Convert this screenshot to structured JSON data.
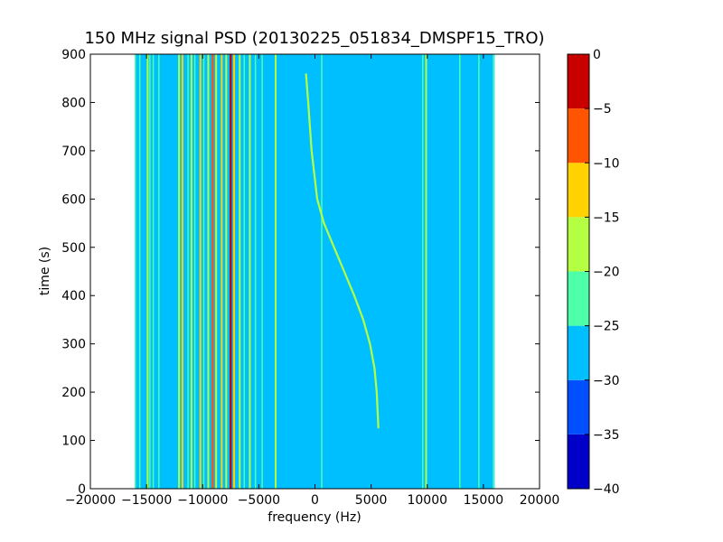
{
  "chart_data": {
    "type": "heatmap",
    "title": "150 MHz signal PSD (20130225_051834_DMSPF15_TRO)",
    "xlabel": "frequency (Hz)",
    "ylabel": "time (s)",
    "xlim": [
      -20000,
      20000
    ],
    "ylim": [
      0,
      900
    ],
    "x_ticks": [
      -20000,
      -15000,
      -10000,
      -5000,
      0,
      5000,
      10000,
      15000,
      20000
    ],
    "y_ticks": [
      0,
      100,
      200,
      300,
      400,
      500,
      600,
      700,
      800,
      900
    ],
    "data_extent_x": [
      -16000,
      16000
    ],
    "background_level_db": -27.5,
    "colorbar": {
      "ticks": [
        0,
        -5,
        -10,
        -15,
        -20,
        -25,
        -30,
        -35,
        -40
      ],
      "range": [
        -40,
        0
      ],
      "levels": [
        {
          "from": -40,
          "to": -35,
          "color": "#0000c8"
        },
        {
          "from": -35,
          "to": -30,
          "color": "#0050ff"
        },
        {
          "from": -30,
          "to": -25,
          "color": "#00bfff"
        },
        {
          "from": -25,
          "to": -20,
          "color": "#4dffa8"
        },
        {
          "from": -20,
          "to": -15,
          "color": "#b5ff43"
        },
        {
          "from": -15,
          "to": -10,
          "color": "#ffd200"
        },
        {
          "from": -10,
          "to": -5,
          "color": "#ff5500"
        },
        {
          "from": -5,
          "to": 0,
          "color": "#c80000"
        }
      ]
    },
    "vertical_lines": [
      {
        "f": -16000,
        "level": -22.5
      },
      {
        "f": -15600,
        "level": -22.5
      },
      {
        "f": -14900,
        "level": -17.5
      },
      {
        "f": -14700,
        "level": -22.5
      },
      {
        "f": -14400,
        "level": -22.5
      },
      {
        "f": -13900,
        "level": -22.5
      },
      {
        "f": -12100,
        "level": -17.5
      },
      {
        "f": -11800,
        "level": -12.5
      },
      {
        "f": -11300,
        "level": -22.5
      },
      {
        "f": -11000,
        "level": -17.5
      },
      {
        "f": -10700,
        "level": -22.5
      },
      {
        "f": -10200,
        "level": -12.5
      },
      {
        "f": -9900,
        "level": -22.5
      },
      {
        "f": -9500,
        "level": -17.5
      },
      {
        "f": -9100,
        "level": -7.5
      },
      {
        "f": -8800,
        "level": -17.5
      },
      {
        "f": -8300,
        "level": -12.5
      },
      {
        "f": -7900,
        "level": -17.5
      },
      {
        "f": -7500,
        "level": -2.5
      },
      {
        "f": -7200,
        "level": -12.5
      },
      {
        "f": -6700,
        "level": -17.5
      },
      {
        "f": -6300,
        "level": -22.5
      },
      {
        "f": -5800,
        "level": -17.5
      },
      {
        "f": -5300,
        "level": -22.5
      },
      {
        "f": -4700,
        "level": -22.5
      },
      {
        "f": -3500,
        "level": -17.5
      },
      {
        "f": 600,
        "level": -22.5
      },
      {
        "f": 9600,
        "level": -22.5
      },
      {
        "f": 9900,
        "level": -17.5
      },
      {
        "f": 12900,
        "level": -22.5
      },
      {
        "f": 14600,
        "level": -22.5
      },
      {
        "f": 15900,
        "level": -22.5
      }
    ],
    "signal_trace": {
      "level": -17.5,
      "points": [
        {
          "time": 860,
          "freq": -800
        },
        {
          "time": 800,
          "freq": -600
        },
        {
          "time": 700,
          "freq": -300
        },
        {
          "time": 600,
          "freq": 200
        },
        {
          "time": 550,
          "freq": 800
        },
        {
          "time": 500,
          "freq": 1700
        },
        {
          "time": 450,
          "freq": 2600
        },
        {
          "time": 400,
          "freq": 3500
        },
        {
          "time": 350,
          "freq": 4300
        },
        {
          "time": 300,
          "freq": 4900
        },
        {
          "time": 250,
          "freq": 5300
        },
        {
          "time": 200,
          "freq": 5500
        },
        {
          "time": 150,
          "freq": 5600
        },
        {
          "time": 125,
          "freq": 5650
        }
      ]
    }
  }
}
